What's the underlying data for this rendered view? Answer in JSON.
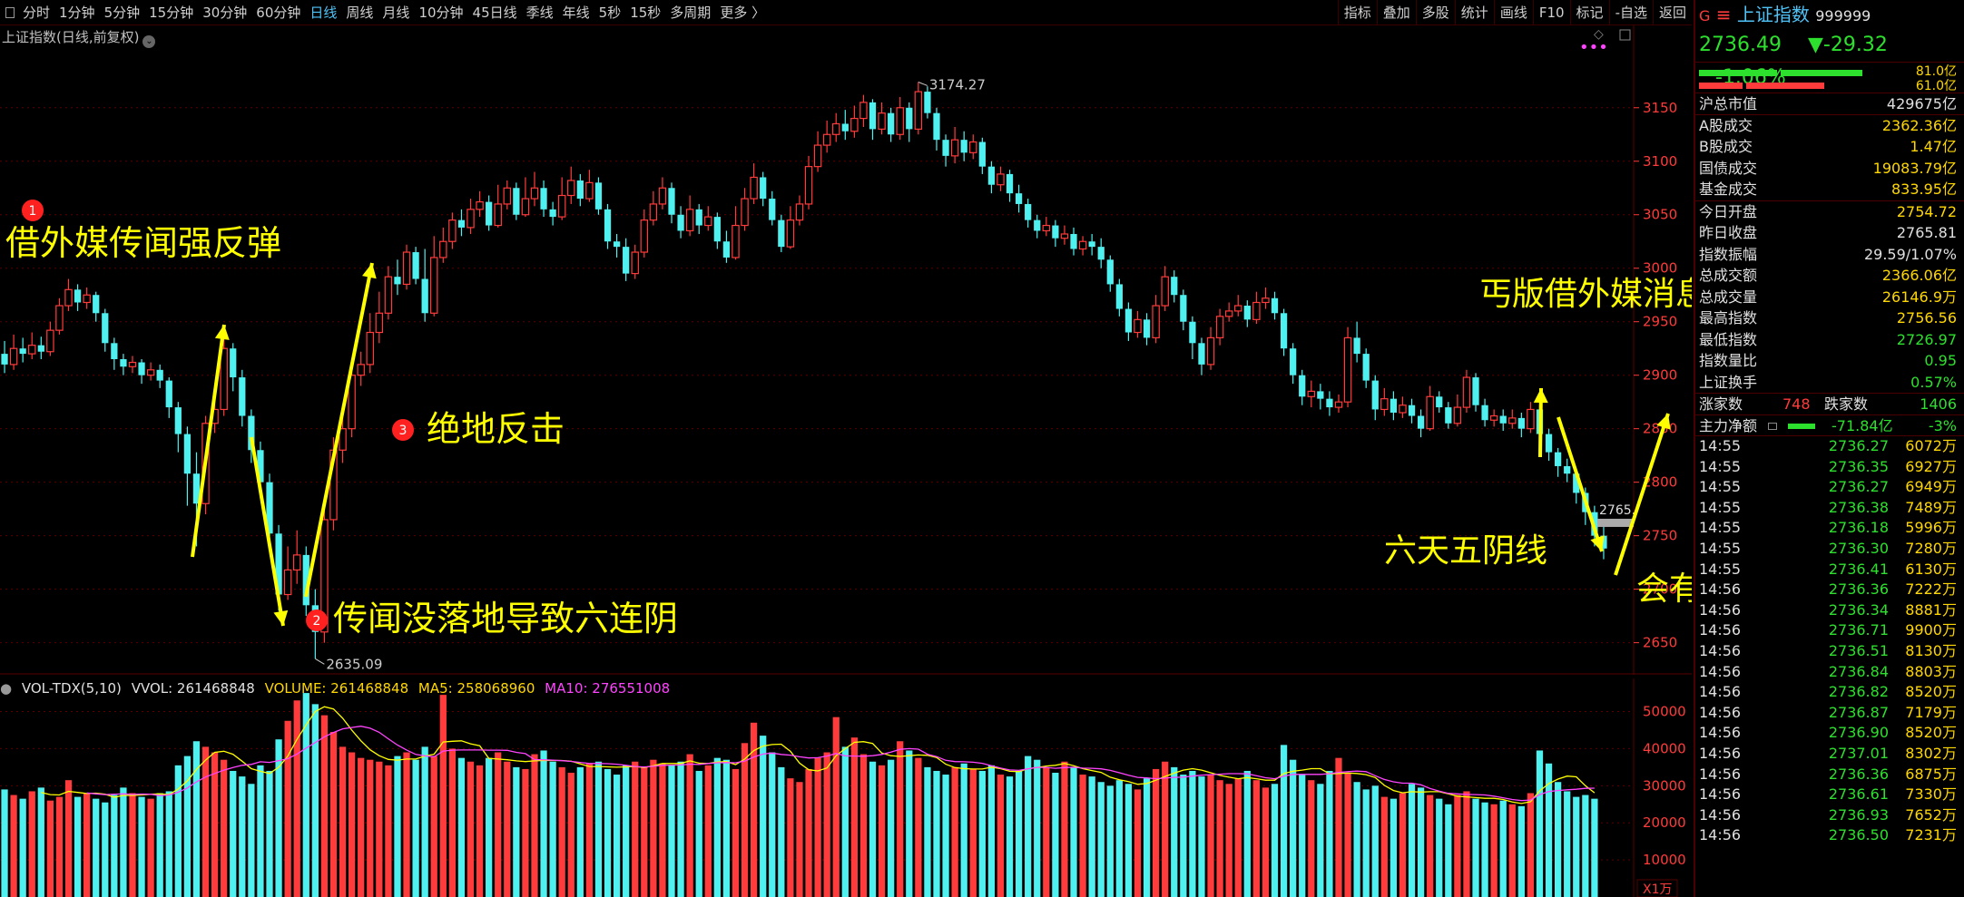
{
  "toolbar": {
    "periods": [
      "分时",
      "1分钟",
      "5分钟",
      "15分钟",
      "30分钟",
      "60分钟",
      "日线",
      "周线",
      "月线",
      "10分钟",
      "45日线",
      "季线",
      "年线",
      "5秒",
      "15秒",
      "多周期",
      "更多 〉"
    ],
    "active_period": "日线",
    "right_tools": [
      "指标",
      "叠加",
      "多股",
      "统计",
      "画线",
      "F10",
      "标记",
      "-自选",
      "返回"
    ]
  },
  "chart_title": "上证指数(日线,前复权)",
  "colors": {
    "up": "#ff3b3b",
    "down": "#4ff0f0",
    "ma5": "#ffff00",
    "ma10": "#ff44ff",
    "annotation": "#ffff00",
    "axis": "#ff3b3b"
  },
  "annotations": [
    {
      "num": "1",
      "text": "借外媒传闻强反弹"
    },
    {
      "num": "2",
      "text": "传闻没落地导致六连阴"
    },
    {
      "num": "3",
      "text": "绝地反击"
    },
    {
      "num": "",
      "text": "丐版借外媒消息上涨"
    },
    {
      "num": "",
      "text": "六天五阴线"
    },
    {
      "num": "",
      "text": "会有像样的反击吗?"
    }
  ],
  "chart_data": {
    "type": "candlestick",
    "title": "上证指数(日线,前复权)",
    "y_ticks": [
      "3150",
      "3100",
      "3050",
      "3000",
      "2950",
      "2900",
      "2850",
      "2800",
      "2750",
      "2700",
      "2650"
    ],
    "ylim": [
      2620,
      3210
    ],
    "high_label": "3174.27",
    "low_label": "2635.09",
    "last_label": "2765.",
    "candles": [
      [
        2920,
        2910,
        2932,
        2902
      ],
      [
        2910,
        2925,
        2938,
        2905
      ],
      [
        2925,
        2920,
        2935,
        2912
      ],
      [
        2920,
        2928,
        2940,
        2915
      ],
      [
        2928,
        2922,
        2936,
        2915
      ],
      [
        2922,
        2942,
        2950,
        2918
      ],
      [
        2942,
        2965,
        2972,
        2938
      ],
      [
        2965,
        2980,
        2990,
        2960
      ],
      [
        2980,
        2968,
        2985,
        2960
      ],
      [
        2968,
        2975,
        2982,
        2962
      ],
      [
        2975,
        2958,
        2978,
        2950
      ],
      [
        2958,
        2930,
        2962,
        2922
      ],
      [
        2930,
        2915,
        2935,
        2905
      ],
      [
        2915,
        2908,
        2920,
        2900
      ],
      [
        2908,
        2912,
        2918,
        2902
      ],
      [
        2912,
        2900,
        2915,
        2892
      ],
      [
        2900,
        2905,
        2912,
        2895
      ],
      [
        2905,
        2895,
        2910,
        2888
      ],
      [
        2895,
        2870,
        2898,
        2860
      ],
      [
        2870,
        2845,
        2875,
        2828
      ],
      [
        2845,
        2808,
        2852,
        2778
      ],
      [
        2808,
        2780,
        2828,
        2740
      ],
      [
        2780,
        2855,
        2862,
        2770
      ],
      [
        2855,
        2868,
        2880,
        2846
      ],
      [
        2868,
        2925,
        2935,
        2862
      ],
      [
        2925,
        2898,
        2930,
        2885
      ],
      [
        2898,
        2862,
        2905,
        2852
      ],
      [
        2862,
        2830,
        2868,
        2818
      ],
      [
        2830,
        2800,
        2838,
        2785
      ],
      [
        2800,
        2752,
        2808,
        2738
      ],
      [
        2752,
        2695,
        2760,
        2680
      ],
      [
        2695,
        2718,
        2740,
        2690
      ],
      [
        2718,
        2732,
        2755,
        2705
      ],
      [
        2732,
        2685,
        2740,
        2675
      ],
      [
        2685,
        2660,
        2700,
        2635
      ],
      [
        2660,
        2765,
        2775,
        2650
      ],
      [
        2765,
        2830,
        2842,
        2755
      ],
      [
        2830,
        2850,
        2865,
        2818
      ],
      [
        2850,
        2900,
        2908,
        2842
      ],
      [
        2900,
        2910,
        2922,
        2890
      ],
      [
        2910,
        2940,
        2958,
        2902
      ],
      [
        2940,
        2958,
        2978,
        2930
      ],
      [
        2958,
        2992,
        3002,
        2952
      ],
      [
        2992,
        2985,
        3008,
        2975
      ],
      [
        2985,
        3015,
        3022,
        2980
      ],
      [
        3015,
        2990,
        3020,
        2985
      ],
      [
        2990,
        2958,
        3018,
        2950
      ],
      [
        2958,
        3010,
        3030,
        2955
      ],
      [
        3010,
        3025,
        3038,
        3005
      ],
      [
        3025,
        3045,
        3052,
        3018
      ],
      [
        3045,
        3038,
        3055,
        3030
      ],
      [
        3038,
        3055,
        3065,
        3032
      ],
      [
        3055,
        3062,
        3072,
        3048
      ],
      [
        3062,
        3040,
        3068,
        3035
      ],
      [
        3040,
        3060,
        3078,
        3038
      ],
      [
        3060,
        3075,
        3082,
        3055
      ],
      [
        3075,
        3050,
        3080,
        3045
      ],
      [
        3050,
        3065,
        3085,
        3048
      ],
      [
        3065,
        3075,
        3090,
        3058
      ],
      [
        3075,
        3055,
        3082,
        3048
      ],
      [
        3055,
        3048,
        3062,
        3040
      ],
      [
        3048,
        3068,
        3085,
        3045
      ],
      [
        3068,
        3082,
        3095,
        3060
      ],
      [
        3082,
        3065,
        3088,
        3058
      ],
      [
        3065,
        3080,
        3092,
        3062
      ],
      [
        3080,
        3055,
        3085,
        3050
      ],
      [
        3055,
        3025,
        3060,
        3018
      ],
      [
        3025,
        3020,
        3032,
        3010
      ],
      [
        3020,
        2995,
        3028,
        2988
      ],
      [
        2995,
        3015,
        3022,
        2990
      ],
      [
        3015,
        3045,
        3055,
        3010
      ],
      [
        3045,
        3060,
        3072,
        3040
      ],
      [
        3060,
        3075,
        3085,
        3055
      ],
      [
        3075,
        3050,
        3080,
        3042
      ],
      [
        3050,
        3035,
        3058,
        3028
      ],
      [
        3035,
        3055,
        3068,
        3030
      ],
      [
        3055,
        3040,
        3060,
        3032
      ],
      [
        3040,
        3048,
        3058,
        3035
      ],
      [
        3048,
        3025,
        3052,
        3018
      ],
      [
        3025,
        3010,
        3035,
        3005
      ],
      [
        3010,
        3040,
        3058,
        3008
      ],
      [
        3040,
        3065,
        3075,
        3035
      ],
      [
        3065,
        3085,
        3098,
        3060
      ],
      [
        3085,
        3065,
        3090,
        3058
      ],
      [
        3065,
        3045,
        3072,
        3040
      ],
      [
        3045,
        3020,
        3050,
        3015
      ],
      [
        3020,
        3045,
        3058,
        3018
      ],
      [
        3045,
        3060,
        3068,
        3040
      ],
      [
        3060,
        3095,
        3105,
        3055
      ],
      [
        3095,
        3115,
        3128,
        3090
      ],
      [
        3115,
        3125,
        3138,
        3108
      ],
      [
        3125,
        3135,
        3145,
        3118
      ],
      [
        3135,
        3128,
        3148,
        3120
      ],
      [
        3128,
        3140,
        3152,
        3122
      ],
      [
        3140,
        3155,
        3162,
        3132
      ],
      [
        3155,
        3130,
        3158,
        3120
      ],
      [
        3130,
        3145,
        3155,
        3125
      ],
      [
        3145,
        3125,
        3150,
        3118
      ],
      [
        3125,
        3150,
        3160,
        3120
      ],
      [
        3150,
        3130,
        3155,
        3118
      ],
      [
        3130,
        3165,
        3174,
        3125
      ],
      [
        3165,
        3145,
        3170,
        3140
      ],
      [
        3145,
        3120,
        3150,
        3110
      ],
      [
        3120,
        3105,
        3125,
        3095
      ],
      [
        3105,
        3120,
        3132,
        3098
      ],
      [
        3120,
        3108,
        3128,
        3100
      ],
      [
        3108,
        3118,
        3125,
        3102
      ],
      [
        3118,
        3095,
        3122,
        3088
      ],
      [
        3095,
        3078,
        3100,
        3070
      ],
      [
        3078,
        3088,
        3095,
        3072
      ],
      [
        3088,
        3070,
        3092,
        3062
      ],
      [
        3070,
        3060,
        3078,
        3052
      ],
      [
        3060,
        3045,
        3065,
        3038
      ],
      [
        3045,
        3035,
        3050,
        3028
      ],
      [
        3035,
        3040,
        3048,
        3030
      ],
      [
        3040,
        3028,
        3045,
        3020
      ],
      [
        3028,
        3032,
        3040,
        3022
      ],
      [
        3032,
        3018,
        3038,
        3012
      ],
      [
        3018,
        3025,
        3030,
        3012
      ],
      [
        3025,
        3020,
        3032,
        3012
      ],
      [
        3020,
        3008,
        3028,
        3000
      ],
      [
        3008,
        2985,
        3012,
        2978
      ],
      [
        2985,
        2962,
        2990,
        2955
      ],
      [
        2962,
        2940,
        2968,
        2932
      ],
      [
        2940,
        2952,
        2960,
        2935
      ],
      [
        2952,
        2935,
        2958,
        2928
      ],
      [
        2935,
        2965,
        2975,
        2930
      ],
      [
        2965,
        2992,
        3002,
        2960
      ],
      [
        2992,
        2975,
        2998,
        2968
      ],
      [
        2975,
        2950,
        2980,
        2942
      ],
      [
        2950,
        2930,
        2955,
        2915
      ],
      [
        2930,
        2910,
        2935,
        2900
      ],
      [
        2910,
        2935,
        2945,
        2905
      ],
      [
        2935,
        2955,
        2962,
        2928
      ],
      [
        2955,
        2960,
        2968,
        2950
      ],
      [
        2960,
        2965,
        2975,
        2955
      ],
      [
        2965,
        2952,
        2970,
        2945
      ],
      [
        2952,
        2968,
        2978,
        2948
      ],
      [
        2968,
        2972,
        2982,
        2962
      ],
      [
        2972,
        2958,
        2978,
        2952
      ],
      [
        2958,
        2925,
        2962,
        2918
      ],
      [
        2925,
        2900,
        2930,
        2892
      ],
      [
        2900,
        2880,
        2905,
        2872
      ],
      [
        2880,
        2885,
        2895,
        2870
      ],
      [
        2885,
        2878,
        2892,
        2868
      ],
      [
        2878,
        2870,
        2885,
        2862
      ],
      [
        2870,
        2875,
        2882,
        2865
      ],
      [
        2875,
        2935,
        2945,
        2870
      ],
      [
        2935,
        2920,
        2950,
        2912
      ],
      [
        2920,
        2895,
        2925,
        2888
      ],
      [
        2895,
        2868,
        2900,
        2858
      ],
      [
        2868,
        2878,
        2888,
        2862
      ],
      [
        2878,
        2865,
        2885,
        2858
      ],
      [
        2865,
        2872,
        2880,
        2860
      ],
      [
        2872,
        2862,
        2878,
        2855
      ],
      [
        2862,
        2850,
        2868,
        2842
      ],
      [
        2850,
        2880,
        2890,
        2848
      ],
      [
        2880,
        2870,
        2885,
        2865
      ],
      [
        2870,
        2855,
        2875,
        2850
      ],
      [
        2855,
        2870,
        2882,
        2852
      ],
      [
        2870,
        2898,
        2905,
        2865
      ],
      [
        2898,
        2872,
        2902,
        2866
      ],
      [
        2872,
        2858,
        2878,
        2852
      ],
      [
        2858,
        2862,
        2868,
        2852
      ],
      [
        2862,
        2855,
        2868,
        2848
      ],
      [
        2855,
        2860,
        2868,
        2850
      ],
      [
        2860,
        2850,
        2865,
        2842
      ],
      [
        2850,
        2868,
        2875,
        2846
      ],
      [
        2868,
        2845,
        2872,
        2835
      ],
      [
        2845,
        2828,
        2850,
        2820
      ],
      [
        2828,
        2815,
        2832,
        2805
      ],
      [
        2815,
        2808,
        2822,
        2800
      ],
      [
        2808,
        2790,
        2812,
        2780
      ],
      [
        2790,
        2772,
        2795,
        2760
      ],
      [
        2772,
        2750,
        2778,
        2740
      ],
      [
        2750,
        2738,
        2762,
        2728
      ]
    ],
    "volume": {
      "label": "VOL-TDX(5,10)",
      "vvol_label": "VVOL: 261468848",
      "volume_label": "VOLUME: 261468848",
      "ma5_label": "MA5: 258068960",
      "ma10_label": "MA10: 276551008",
      "ticks": [
        "50000",
        "40000",
        "30000",
        "20000",
        "10000"
      ],
      "unit": "X1万",
      "ylim": [
        0,
        56000
      ],
      "values": [
        29000,
        27500,
        26500,
        28500,
        29500,
        26000,
        27000,
        31500,
        27000,
        28000,
        26500,
        25500,
        27500,
        29500,
        28000,
        27000,
        26500,
        28000,
        28500,
        35500,
        38000,
        42000,
        40500,
        39000,
        37000,
        34000,
        32500,
        30500,
        35500,
        34000,
        42500,
        47500,
        53000,
        55000,
        52000,
        49000,
        44500,
        40500,
        39000,
        37500,
        37000,
        36500,
        35500,
        38000,
        39000,
        37000,
        40500,
        38000,
        54500,
        40000,
        37500,
        36500,
        35500,
        37500,
        39000,
        36500,
        35000,
        34500,
        38500,
        39500,
        36500,
        35000,
        33500,
        35000,
        36000,
        36500,
        34500,
        33000,
        35500,
        36500,
        35000,
        37000,
        36000,
        35500,
        36500,
        38500,
        34000,
        35500,
        37500,
        37000,
        34500,
        41500,
        47000,
        43500,
        39000,
        35000,
        32000,
        31000,
        34500,
        37500,
        39000,
        48500,
        40500,
        43000,
        38500,
        36500,
        35500,
        37000,
        42000,
        39500,
        37500,
        35000,
        34000,
        33000,
        35000,
        36000,
        34500,
        34000,
        35500,
        33000,
        32500,
        34000,
        38000,
        37000,
        35000,
        33500,
        36500,
        35000,
        33000,
        32500,
        31000,
        30000,
        31500,
        30500,
        29000,
        32000,
        34500,
        36500,
        35000,
        33000,
        34000,
        32500,
        33000,
        31500,
        30500,
        32000,
        34000,
        31500,
        29500,
        30500,
        41000,
        37000,
        33000,
        31500,
        30500,
        34000,
        37500,
        33500,
        31000,
        29000,
        30000,
        27000,
        26500,
        28000,
        30500,
        29500,
        27500,
        26500,
        25000,
        27500,
        28500,
        26500,
        25500,
        25000,
        26000,
        25000,
        24500,
        28000,
        39500,
        36000,
        31000,
        28500,
        27000,
        27500,
        26500
      ]
    }
  },
  "quote_panel": {
    "g_icon": "G",
    "menu_icon": "≡",
    "name": "上证指数",
    "code": "999999",
    "price": "2736.49",
    "change": "▼-29.32",
    "change_pct": "-1.06%",
    "buy_amount": "81.0亿",
    "sell_amount": "61.0亿",
    "market_cap_label": "沪总市值",
    "market_cap": "429675亿",
    "stats1": [
      {
        "label": "A股成交",
        "value": "2362.36亿"
      },
      {
        "label": "B股成交",
        "value": "1.47亿"
      },
      {
        "label": "国债成交",
        "value": "19083.79亿"
      },
      {
        "label": "基金成交",
        "value": "833.95亿"
      }
    ],
    "stats2": [
      {
        "label": "今日开盘",
        "value": "2754.72"
      },
      {
        "label": "昨日收盘",
        "value": "2765.81"
      },
      {
        "label": "指数振幅",
        "value": "29.59/1.07%"
      },
      {
        "label": "总成交额",
        "value": "2366.06亿"
      },
      {
        "label": "总成交量",
        "value": "26146.9万"
      },
      {
        "label": "最高指数",
        "value": "2756.56"
      },
      {
        "label": "最低指数",
        "value": "2726.97"
      },
      {
        "label": "指数量比",
        "value": "0.95"
      },
      {
        "label": "上证换手",
        "value": "0.57%"
      }
    ],
    "up_label": "涨家数",
    "up_count": "748",
    "down_label": "跌家数",
    "down_count": "1406",
    "main_net_label": "主力净额",
    "main_net": "-71.84亿",
    "main_net_pct": "-3%",
    "ticks": [
      [
        "14:55",
        "2736.27",
        "6072万"
      ],
      [
        "14:55",
        "2736.35",
        "6927万"
      ],
      [
        "14:55",
        "2736.27",
        "6949万"
      ],
      [
        "14:55",
        "2736.38",
        "7489万"
      ],
      [
        "14:55",
        "2736.18",
        "5996万"
      ],
      [
        "14:55",
        "2736.30",
        "7280万"
      ],
      [
        "14:55",
        "2736.41",
        "6130万"
      ],
      [
        "14:56",
        "2736.36",
        "7222万"
      ],
      [
        "14:56",
        "2736.34",
        "8881万"
      ],
      [
        "14:56",
        "2736.71",
        "9900万"
      ],
      [
        "14:56",
        "2736.51",
        "8130万"
      ],
      [
        "14:56",
        "2736.84",
        "8803万"
      ],
      [
        "14:56",
        "2736.82",
        "8520万"
      ],
      [
        "14:56",
        "2736.87",
        "7179万"
      ],
      [
        "14:56",
        "2736.90",
        "8520万"
      ],
      [
        "14:56",
        "2737.01",
        "8302万"
      ],
      [
        "14:56",
        "2736.36",
        "6875万"
      ],
      [
        "14:56",
        "2736.61",
        "7330万"
      ],
      [
        "14:56",
        "2736.93",
        "7652万"
      ],
      [
        "14:56",
        "2736.50",
        "7231万"
      ]
    ]
  }
}
